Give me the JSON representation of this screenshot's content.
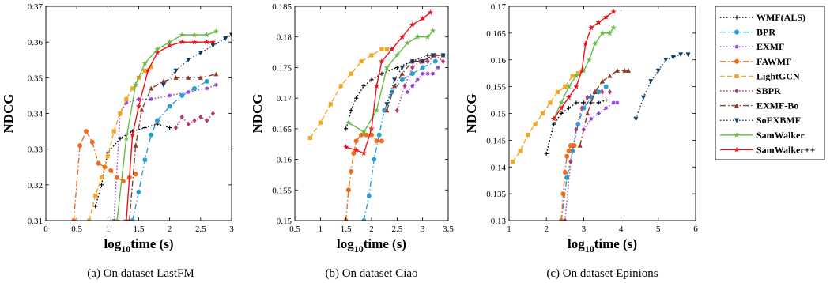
{
  "legend": [
    "WMF(ALS)",
    "BPR",
    "EXMF",
    "FAWMF",
    "LightGCN",
    "SBPR",
    "EXMF-Bo",
    "SoEXBMF",
    "SamWalker",
    "SamWalker++"
  ],
  "series_styles": [
    {
      "name": "WMF(ALS)",
      "color": "#000000",
      "dash": "1.5,2.5",
      "marker": "plus"
    },
    {
      "name": "BPR",
      "color": "#2a9fd6",
      "dash": "7,3,1.5,3",
      "marker": "circle"
    },
    {
      "name": "EXMF",
      "color": "#8e3dd6",
      "dash": "1.5,2.5",
      "marker": "asterisk"
    },
    {
      "name": "FAWMF",
      "color": "#f26b1d",
      "dash": "7,3,1.5,3",
      "marker": "circle"
    },
    {
      "name": "LightGCN",
      "color": "#f5a623",
      "dash": "6,3",
      "marker": "square"
    },
    {
      "name": "SBPR",
      "color": "#b03a78",
      "dash": "1.5,2.5",
      "marker": "diamond"
    },
    {
      "name": "EXMF-Bo",
      "color": "#8b3a2a",
      "dash": "7,3,1.5,3",
      "marker": "triangle"
    },
    {
      "name": "SoEXBMF",
      "color": "#0f3b5f",
      "dash": "1.5,2.5",
      "marker": "triangle-down"
    },
    {
      "name": "SamWalker",
      "color": "#66bb44",
      "dash": "",
      "marker": "star"
    },
    {
      "name": "SamWalker++",
      "color": "#e8141c",
      "dash": "",
      "marker": "star"
    }
  ],
  "chart_data": [
    {
      "type": "line",
      "caption": "(a) On dataset LastFM",
      "xlabel": "log10time (s)",
      "ylabel": "NDCG",
      "xlim": [
        0,
        3
      ],
      "ylim": [
        0.31,
        0.37
      ],
      "xticks": [
        "0",
        "0.5",
        "1",
        "1.5",
        "2",
        "2.5",
        "3"
      ],
      "yticks": [
        "0.31",
        "0.32",
        "0.33",
        "0.34",
        "0.35",
        "0.36",
        "0.37"
      ],
      "series": [
        {
          "name": "WMF(ALS)",
          "x": [
            0.8,
            0.9,
            1.0,
            1.2,
            1.4,
            1.6,
            1.8,
            2.0
          ],
          "y": [
            0.314,
            0.32,
            0.329,
            0.333,
            0.335,
            0.336,
            0.337,
            0.336
          ]
        },
        {
          "name": "BPR",
          "x": [
            1.4,
            1.5,
            1.6,
            1.7,
            1.8,
            2.0,
            2.2,
            2.4,
            2.6
          ],
          "y": [
            0.31,
            0.318,
            0.327,
            0.334,
            0.338,
            0.342,
            0.345,
            0.347,
            0.349
          ]
        },
        {
          "name": "EXMF",
          "x": [
            1.1,
            1.2,
            1.3,
            1.5,
            1.7,
            2.0,
            2.3,
            2.6,
            2.75
          ],
          "y": [
            0.31,
            0.34,
            0.343,
            0.344,
            0.344,
            0.345,
            0.346,
            0.347,
            0.348
          ]
        },
        {
          "name": "FAWMF",
          "x": [
            0.45,
            0.55,
            0.65,
            0.75,
            0.85,
            0.95,
            1.05,
            1.15,
            1.25,
            1.35,
            1.45
          ],
          "y": [
            0.31,
            0.331,
            0.335,
            0.332,
            0.326,
            0.325,
            0.324,
            0.322,
            0.321,
            0.322,
            0.323
          ]
        },
        {
          "name": "LightGCN",
          "x": [
            0.7,
            0.8,
            0.9,
            1.0,
            1.1,
            1.2,
            1.3,
            1.4,
            1.5,
            1.6,
            1.7
          ],
          "y": [
            0.31,
            0.317,
            0.322,
            0.328,
            0.335,
            0.34,
            0.344,
            0.347,
            0.35,
            0.352,
            0.353
          ]
        },
        {
          "name": "SBPR",
          "x": [
            2.1,
            2.2,
            2.3,
            2.4,
            2.5,
            2.6,
            2.7
          ],
          "y": [
            0.336,
            0.339,
            0.337,
            0.338,
            0.339,
            0.338,
            0.34
          ]
        },
        {
          "name": "EXMF-Bo",
          "x": [
            1.35,
            1.45,
            1.55,
            1.7,
            1.9,
            2.1,
            2.3,
            2.5,
            2.75
          ],
          "y": [
            0.31,
            0.331,
            0.341,
            0.347,
            0.349,
            0.35,
            0.35,
            0.35,
            0.351
          ]
        },
        {
          "name": "SoEXBMF",
          "x": [
            1.9,
            2.1,
            2.3,
            2.5,
            2.7,
            2.9,
            3.0
          ],
          "y": [
            0.348,
            0.352,
            0.355,
            0.357,
            0.359,
            0.361,
            0.362
          ]
        },
        {
          "name": "SamWalker",
          "x": [
            1.15,
            1.3,
            1.45,
            1.6,
            1.8,
            2.0,
            2.2,
            2.4,
            2.6,
            2.75
          ],
          "y": [
            0.31,
            0.333,
            0.348,
            0.354,
            0.358,
            0.36,
            0.362,
            0.362,
            0.362,
            0.363
          ]
        },
        {
          "name": "SamWalker++",
          "x": [
            1.3,
            1.4,
            1.5,
            1.65,
            1.8,
            2.0,
            2.2,
            2.4,
            2.6,
            2.7
          ],
          "y": [
            0.31,
            0.334,
            0.342,
            0.352,
            0.357,
            0.359,
            0.36,
            0.36,
            0.36,
            0.36
          ]
        }
      ]
    },
    {
      "type": "line",
      "caption": "(b) On dataset Ciao",
      "xlabel": "log10time (s)",
      "ylabel": "NDCG",
      "xlim": [
        0.5,
        3.5
      ],
      "ylim": [
        0.15,
        0.185
      ],
      "xticks": [
        "0.5",
        "1",
        "1.5",
        "2",
        "2.5",
        "3",
        "3.5"
      ],
      "yticks": [
        "0.15",
        "0.155",
        "0.16",
        "0.165",
        "0.17",
        "0.175",
        "0.18",
        "0.185"
      ],
      "series": [
        {
          "name": "WMF(ALS)",
          "x": [
            1.5,
            1.6,
            1.7,
            1.85,
            2.0,
            2.2,
            2.5,
            2.8,
            3.1,
            3.4
          ],
          "y": [
            0.165,
            0.168,
            0.17,
            0.172,
            0.173,
            0.174,
            0.175,
            0.176,
            0.177,
            0.177
          ]
        },
        {
          "name": "BPR",
          "x": [
            1.85,
            1.95,
            2.05,
            2.15,
            2.25,
            2.4,
            2.6,
            2.8,
            3.0,
            3.25
          ],
          "y": [
            0.15,
            0.154,
            0.16,
            0.164,
            0.168,
            0.171,
            0.173,
            0.174,
            0.175,
            0.176
          ]
        },
        {
          "name": "EXMF",
          "x": [
            2.7,
            2.8,
            2.9,
            3.0,
            3.1,
            3.2,
            3.3
          ],
          "y": [
            0.171,
            0.172,
            0.173,
            0.174,
            0.174,
            0.174,
            0.175
          ]
        },
        {
          "name": "FAWMF",
          "x": [
            1.5,
            1.55,
            1.6,
            1.65,
            1.7,
            1.8,
            1.9,
            2.0,
            2.1,
            2.2
          ],
          "y": [
            0.15,
            0.155,
            0.158,
            0.161,
            0.163,
            0.164,
            0.164,
            0.164,
            0.163,
            0.163
          ]
        },
        {
          "name": "LightGCN",
          "x": [
            0.8,
            1.0,
            1.2,
            1.4,
            1.6,
            1.8,
            2.0,
            2.2,
            2.3
          ],
          "y": [
            0.1635,
            0.166,
            0.169,
            0.172,
            0.174,
            0.176,
            0.177,
            0.178,
            0.178
          ]
        },
        {
          "name": "SBPR",
          "x": [
            2.5,
            2.65,
            2.8,
            2.95,
            3.1,
            3.25,
            3.4
          ],
          "y": [
            0.168,
            0.172,
            0.175,
            0.176,
            0.176,
            0.177,
            0.176
          ]
        },
        {
          "name": "EXMF-Bo",
          "x": [
            2.3,
            2.45,
            2.6,
            2.8,
            3.0,
            3.2,
            3.4
          ],
          "y": [
            0.168,
            0.172,
            0.174,
            0.176,
            0.176,
            0.177,
            0.177
          ]
        },
        {
          "name": "SoEXBMF",
          "x": [
            2.3,
            2.45,
            2.6,
            2.8,
            3.0,
            3.2,
            3.4
          ],
          "y": [
            0.169,
            0.173,
            0.175,
            0.176,
            0.176,
            0.177,
            0.177
          ]
        },
        {
          "name": "SamWalker",
          "x": [
            1.55,
            1.85,
            2.1,
            2.3,
            2.5,
            2.7,
            2.9,
            3.1,
            3.2
          ],
          "y": [
            0.166,
            0.1645,
            0.168,
            0.175,
            0.177,
            0.179,
            0.18,
            0.18,
            0.181
          ]
        },
        {
          "name": "SamWalker++",
          "x": [
            1.5,
            1.7,
            1.85,
            2.0,
            2.1,
            2.2,
            2.4,
            2.6,
            2.8,
            3.0,
            3.15
          ],
          "y": [
            0.162,
            0.1615,
            0.161,
            0.165,
            0.172,
            0.176,
            0.178,
            0.18,
            0.182,
            0.183,
            0.184
          ]
        }
      ]
    },
    {
      "type": "line",
      "caption": "(c) On dataset Epinions",
      "xlabel": "log10time (s)",
      "ylabel": "NDCG",
      "xlim": [
        1,
        6
      ],
      "ylim": [
        0.13,
        0.17
      ],
      "xticks": [
        "1",
        "2",
        "3",
        "4",
        "5",
        "6"
      ],
      "yticks": [
        "0.13",
        "0.135",
        "0.14",
        "0.145",
        "0.15",
        "0.155",
        "0.16",
        "0.165",
        "0.17"
      ],
      "series": [
        {
          "name": "WMF(ALS)",
          "x": [
            2.0,
            2.2,
            2.4,
            2.6,
            2.8,
            3.0,
            3.2,
            3.4,
            3.6
          ],
          "y": [
            0.1425,
            0.148,
            0.15,
            0.151,
            0.152,
            0.152,
            0.152,
            0.152,
            0.1525
          ]
        },
        {
          "name": "BPR",
          "x": [
            2.4,
            2.55,
            2.7,
            2.85,
            3.0,
            3.2,
            3.4,
            3.6
          ],
          "y": [
            0.13,
            0.138,
            0.143,
            0.148,
            0.151,
            0.153,
            0.154,
            0.155
          ]
        },
        {
          "name": "EXMF",
          "x": [
            3.0,
            3.2,
            3.4,
            3.6,
            3.8,
            3.9
          ],
          "y": [
            0.147,
            0.149,
            0.15,
            0.151,
            0.152,
            0.152
          ]
        },
        {
          "name": "FAWMF",
          "x": [
            2.4,
            2.45,
            2.5,
            2.55,
            2.6,
            2.65,
            2.7,
            2.75
          ],
          "y": [
            0.13,
            0.135,
            0.139,
            0.142,
            0.143,
            0.144,
            0.144,
            0.144
          ]
        },
        {
          "name": "LightGCN",
          "x": [
            1.1,
            1.3,
            1.5,
            1.7,
            1.9,
            2.1,
            2.3,
            2.5,
            2.7,
            2.85
          ],
          "y": [
            0.141,
            0.143,
            0.146,
            0.148,
            0.15,
            0.152,
            0.154,
            0.155,
            0.157,
            0.1575
          ]
        },
        {
          "name": "SBPR",
          "x": [
            2.5,
            2.65,
            2.8,
            2.95,
            3.1,
            3.3,
            3.5,
            3.7
          ],
          "y": [
            0.13,
            0.141,
            0.147,
            0.151,
            0.153,
            0.154,
            0.154,
            0.154
          ]
        },
        {
          "name": "EXMF-Bo",
          "x": [
            2.9,
            3.1,
            3.3,
            3.5,
            3.7,
            3.9,
            4.1,
            4.2
          ],
          "y": [
            0.144,
            0.15,
            0.154,
            0.156,
            0.157,
            0.158,
            0.158,
            0.158
          ]
        },
        {
          "name": "SoEXBMF",
          "x": [
            4.4,
            4.6,
            4.8,
            5.0,
            5.2,
            5.4,
            5.6,
            5.8
          ],
          "y": [
            0.149,
            0.153,
            0.156,
            0.158,
            0.16,
            0.1605,
            0.161,
            0.161
          ]
        },
        {
          "name": "SamWalker",
          "x": [
            2.2,
            2.4,
            2.6,
            2.8,
            3.0,
            3.15,
            3.3,
            3.5,
            3.7,
            3.8
          ],
          "y": [
            0.149,
            0.152,
            0.155,
            0.157,
            0.158,
            0.16,
            0.163,
            0.165,
            0.165,
            0.166
          ]
        },
        {
          "name": "SamWalker++",
          "x": [
            2.2,
            2.4,
            2.6,
            2.8,
            2.95,
            3.05,
            3.2,
            3.4,
            3.6,
            3.8
          ],
          "y": [
            0.149,
            0.151,
            0.153,
            0.155,
            0.158,
            0.163,
            0.166,
            0.167,
            0.168,
            0.169
          ]
        }
      ]
    }
  ]
}
